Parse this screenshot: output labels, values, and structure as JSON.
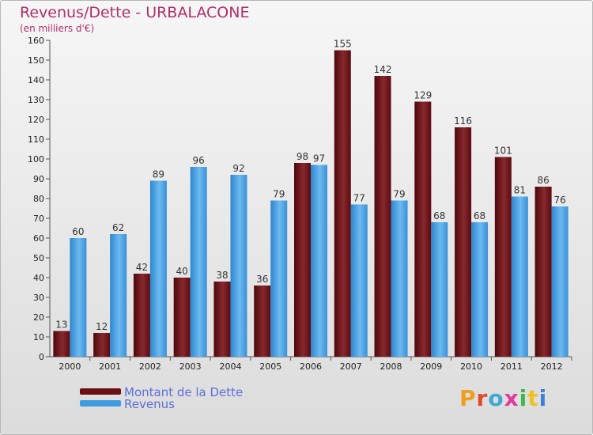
{
  "chart_data": {
    "type": "bar",
    "title": "Revenus/Dette - URBALACONE",
    "subtitle": "(en milliers d'€)",
    "xlabel": "",
    "ylabel": "",
    "categories": [
      "2000",
      "2001",
      "2002",
      "2003",
      "2004",
      "2005",
      "2006",
      "2007",
      "2008",
      "2009",
      "2010",
      "2011",
      "2012"
    ],
    "series": [
      {
        "name": "Montant de la Dette",
        "color": "#6b0f14",
        "values": [
          13,
          12,
          42,
          40,
          38,
          36,
          98,
          155,
          142,
          129,
          116,
          101,
          86
        ]
      },
      {
        "name": "Revenus",
        "color": "#3f9ce0",
        "values": [
          60,
          62,
          89,
          96,
          92,
          79,
          97,
          77,
          79,
          68,
          68,
          81,
          76
        ]
      }
    ],
    "ylim": [
      0,
      160
    ],
    "ytick_step": 10,
    "grid": false,
    "legend_position": "bottom-left",
    "data_labels": true
  },
  "brand": {
    "text": "Proxiti",
    "colors": [
      "#f0a020",
      "#e04a2a",
      "#3fa9d8",
      "#e03a9a",
      "#3fb84a",
      "#f0c020",
      "#3f7fd8"
    ]
  }
}
